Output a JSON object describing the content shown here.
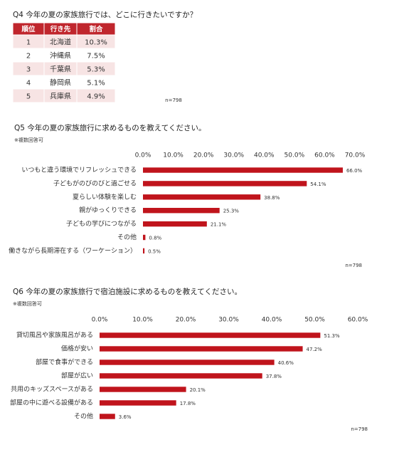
{
  "q4": {
    "title": "Q4 今年の夏の家族旅行では、どこに行きたいですか？",
    "table": {
      "header": [
        "順位",
        "行き先",
        "割合"
      ],
      "rows": [
        [
          "1",
          "北海道",
          "10.3%"
        ],
        [
          "2",
          "沖縄県",
          "7.5%"
        ],
        [
          "3",
          "千葉県",
          "5.3%"
        ],
        [
          "4",
          "静岡県",
          "5.1%"
        ],
        [
          "5",
          "兵庫県",
          "4.9%"
        ]
      ]
    },
    "note": "n=798"
  },
  "chart_data": [
    {
      "type": "bar",
      "orientation": "horizontal",
      "title": "Q5 今年の夏の家族旅行に求めるものを教えてください。",
      "subtitle": "※複数回答可",
      "categories": [
        "いつもと違う環境でリフレッシュできる",
        "子どもがのびのびと過ごせる",
        "夏らしい体験を楽しむ",
        "親がゆっくりできる",
        "子どもの学びにつながる",
        "その他",
        "働きながら長期滞在する（ワーケーション）"
      ],
      "values": [
        66.0,
        54.1,
        38.8,
        25.3,
        21.1,
        0.8,
        0.5
      ],
      "value_labels": [
        "66.0%",
        "54.1%",
        "38.8%",
        "25.3%",
        "21.1%",
        "0.8%",
        "0.5%"
      ],
      "color": "#c0141c",
      "xlim": [
        0,
        70
      ],
      "xticks": [
        {
          "value": 0,
          "label": "0.0%"
        },
        {
          "value": 10,
          "label": "10.0%"
        },
        {
          "value": 20,
          "label": "20.0%"
        },
        {
          "value": 30,
          "label": "30.0%"
        },
        {
          "value": 40,
          "label": "40.0%"
        },
        {
          "value": 50,
          "label": "50.0%"
        },
        {
          "value": 60,
          "label": "60.0%"
        },
        {
          "value": 70,
          "label": "70.0%"
        }
      ],
      "grid": false,
      "note": "n=798"
    },
    {
      "type": "bar",
      "orientation": "horizontal",
      "title": "Q6 今年の夏の家族旅行で宿泊施設に求めるものを教えてください。",
      "subtitle": "※複数回答可",
      "categories": [
        "貸切風呂や家族風呂がある",
        "価格が安い",
        "部屋で食事ができる",
        "部屋が広い",
        "共用のキッズスペースがある",
        "部屋の中に遊べる設備がある",
        "その他"
      ],
      "values": [
        51.3,
        47.2,
        40.6,
        37.8,
        20.1,
        17.8,
        3.6
      ],
      "value_labels": [
        "51.3%",
        "47.2%",
        "40.6%",
        "37.8%",
        "20.1%",
        "17.8%",
        "3.6%"
      ],
      "color": "#c0141c",
      "xlim": [
        0,
        60
      ],
      "xticks": [
        {
          "value": 0,
          "label": "0.0%"
        },
        {
          "value": 10,
          "label": "10.0%"
        },
        {
          "value": 20,
          "label": "20.0%"
        },
        {
          "value": 30,
          "label": "30.0%"
        },
        {
          "value": 40,
          "label": "40.0%"
        },
        {
          "value": 50,
          "label": "50.0%"
        },
        {
          "value": 60,
          "label": "60.0%"
        }
      ],
      "grid": false,
      "note": "n=798"
    }
  ]
}
